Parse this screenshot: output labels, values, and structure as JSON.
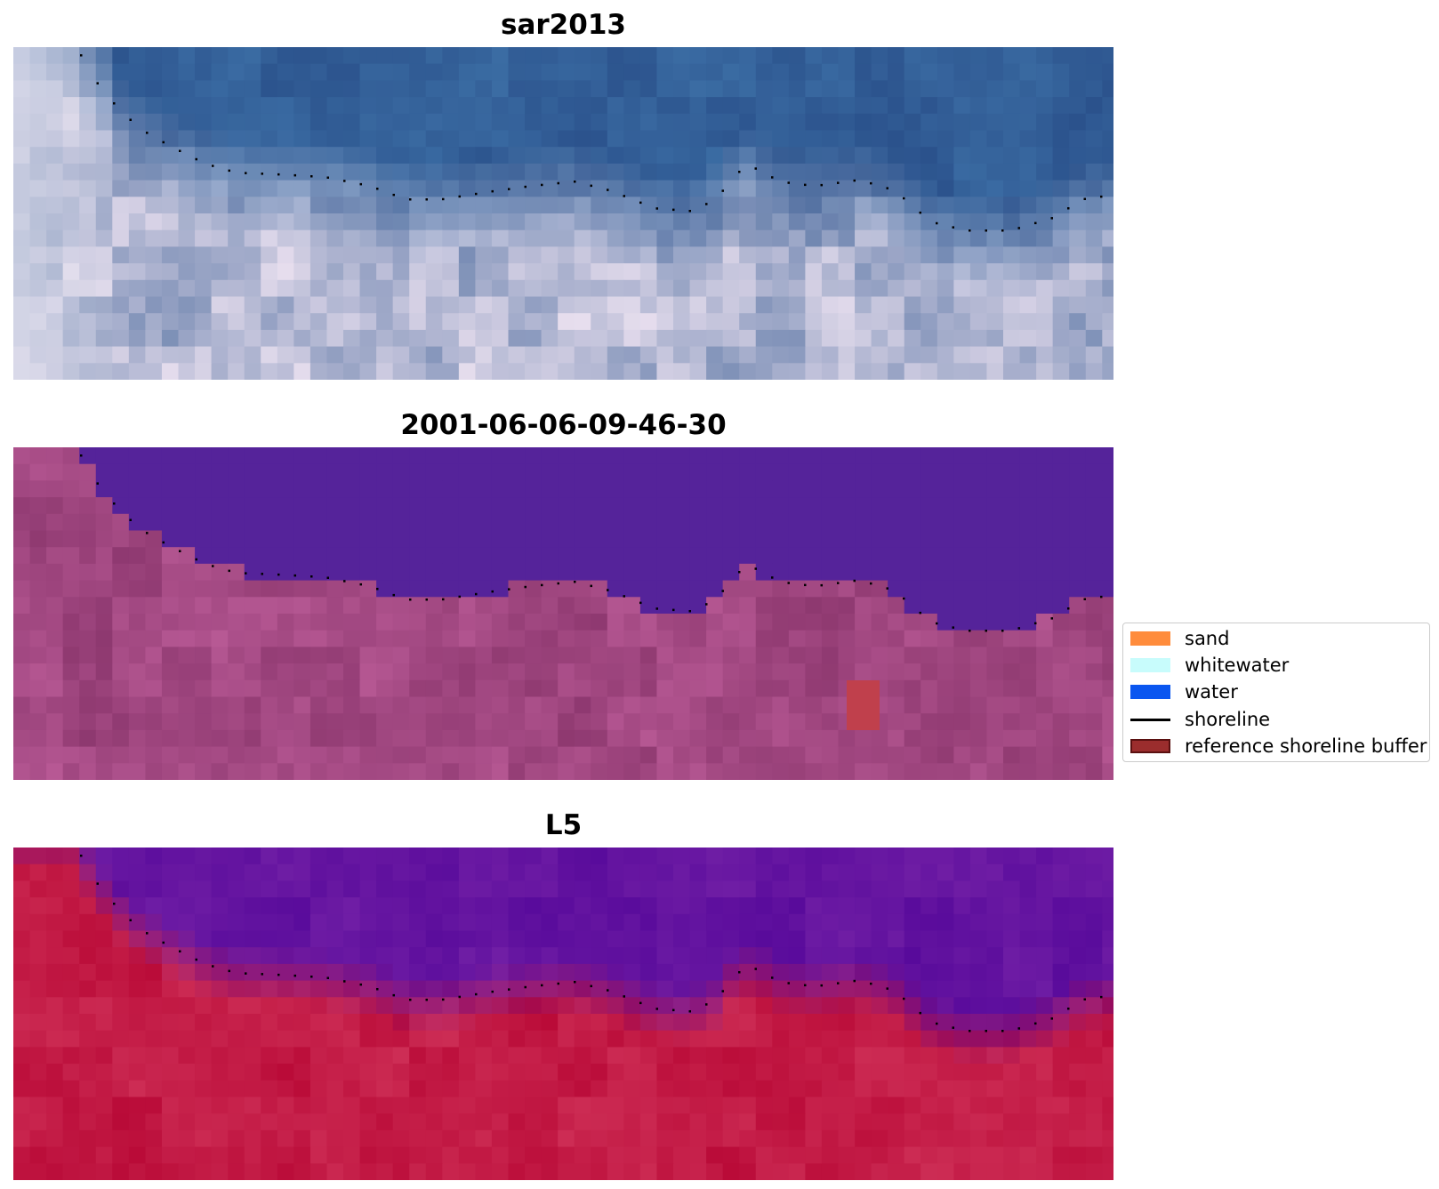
{
  "panels": [
    {
      "title": "sar2013",
      "style": "rgb"
    },
    {
      "title": "2001-06-06-09-46-30",
      "style": "classified"
    },
    {
      "title": "L5",
      "style": "index"
    }
  ],
  "legend": {
    "items": [
      {
        "label": "sand",
        "kind": "patch",
        "color": "#ff8c3c"
      },
      {
        "label": "whitewater",
        "kind": "patch",
        "color": "#c8fcfc"
      },
      {
        "label": "water",
        "kind": "patch",
        "color": "#0a56f0"
      },
      {
        "label": "shoreline",
        "kind": "line",
        "color": "#000000"
      },
      {
        "label": "reference shoreline buffer",
        "kind": "patch",
        "color": "#9b2d2d",
        "edge": "#5a1010"
      }
    ]
  },
  "colors": {
    "water_class": "#55239a",
    "land_class": "#a0497f",
    "index_water": "#5a0aa0",
    "index_land": "#c0103c",
    "buffer_patch": "#c0404c"
  }
}
